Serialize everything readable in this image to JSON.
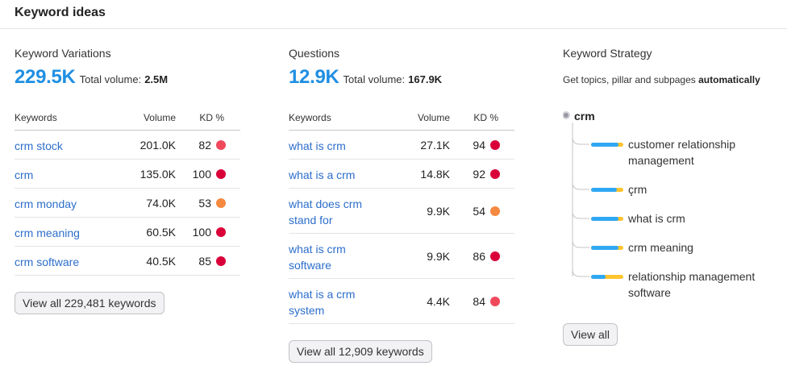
{
  "header": {
    "title": "Keyword ideas"
  },
  "colors": {
    "accent": "#1f8fe3",
    "link": "#2c6ecb",
    "kd_hard": "#d9003a",
    "kd_very_hard": "#f0495c",
    "kd_medium": "#f5893f",
    "bar_blue": "#2fa8f4",
    "bar_yellow": "#ffc42e"
  },
  "variations": {
    "title": "Keyword Variations",
    "count": "229.5K",
    "total_label": "Total volume:",
    "total_value": "2.5M",
    "columns": {
      "keywords": "Keywords",
      "volume": "Volume",
      "kd": "KD %"
    },
    "rows": [
      {
        "keyword": "crm stock",
        "volume": "201.0K",
        "kd": "82",
        "kd_color": "#f0495c"
      },
      {
        "keyword": "crm",
        "volume": "135.0K",
        "kd": "100",
        "kd_color": "#d9003a"
      },
      {
        "keyword": "crm monday",
        "volume": "74.0K",
        "kd": "53",
        "kd_color": "#f5893f"
      },
      {
        "keyword": "crm meaning",
        "volume": "60.5K",
        "kd": "100",
        "kd_color": "#d9003a"
      },
      {
        "keyword": "crm software",
        "volume": "40.5K",
        "kd": "85",
        "kd_color": "#d9003a"
      }
    ],
    "view_all": "View all 229,481 keywords"
  },
  "questions": {
    "title": "Questions",
    "count": "12.9K",
    "total_label": "Total volume:",
    "total_value": "167.9K",
    "columns": {
      "keywords": "Keywords",
      "volume": "Volume",
      "kd": "KD %"
    },
    "rows": [
      {
        "keyword": "what is crm",
        "volume": "27.1K",
        "kd": "94",
        "kd_color": "#d9003a"
      },
      {
        "keyword": "what is a crm",
        "volume": "14.8K",
        "kd": "92",
        "kd_color": "#d9003a"
      },
      {
        "keyword": "what does crm stand for",
        "volume": "9.9K",
        "kd": "54",
        "kd_color": "#f5893f"
      },
      {
        "keyword": "what is crm software",
        "volume": "9.9K",
        "kd": "86",
        "kd_color": "#d9003a"
      },
      {
        "keyword": "what is a crm system",
        "volume": "4.4K",
        "kd": "84",
        "kd_color": "#f0495c"
      }
    ],
    "view_all": "View all 12,909 keywords"
  },
  "strategy": {
    "title": "Keyword Strategy",
    "subtitle_prefix": "Get topics, pillar and subpages ",
    "subtitle_bold": "automatically",
    "root": "crm",
    "nodes": [
      {
        "label": "customer relationship management",
        "blue_share": 0.85
      },
      {
        "label": "çrm",
        "blue_share": 0.8
      },
      {
        "label": "what is crm",
        "blue_share": 0.85
      },
      {
        "label": "crm meaning",
        "blue_share": 0.85
      },
      {
        "label": "relationship management software",
        "blue_share": 0.45
      }
    ],
    "view_all": "View all"
  }
}
